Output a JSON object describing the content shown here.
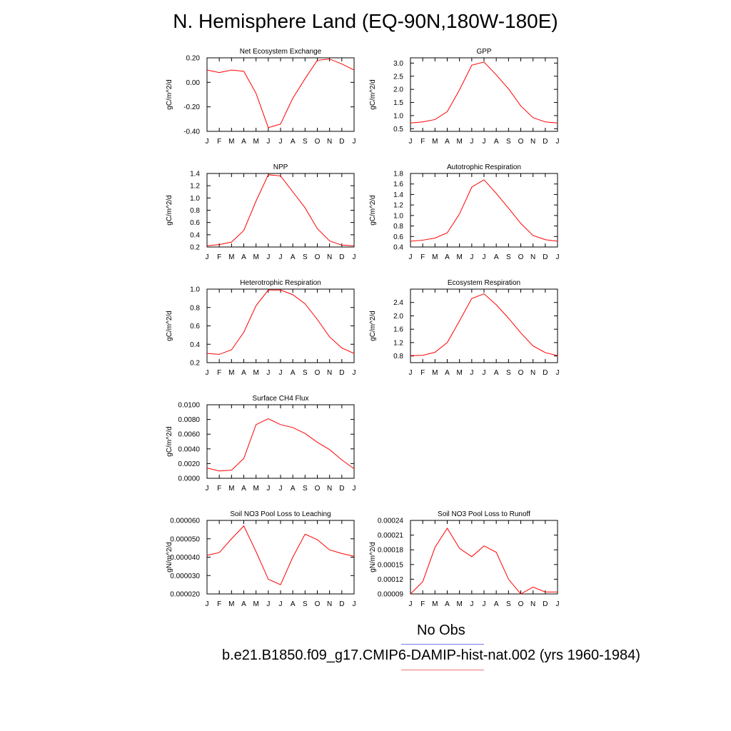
{
  "title": "N. Hemisphere Land (EQ-90N,180W-180E)",
  "months": [
    "J",
    "F",
    "M",
    "A",
    "M",
    "J",
    "J",
    "A",
    "S",
    "O",
    "N",
    "D",
    "J"
  ],
  "legend": {
    "obs_label": "No Obs",
    "case_label": "b.e21.B1850.f09_g17.CMIP6-DAMIP-hist-nat.002 (yrs 1960-1984)",
    "obs_color": "#7777ee",
    "case_color": "#ee7777"
  },
  "series_color": "#ff0000",
  "chart_data": [
    {
      "type": "line",
      "title": "Net Ecosystem Exchange",
      "ylabel": "gC/m^2/d",
      "ylim": [
        -0.4,
        0.2
      ],
      "ytick_values": [
        0.2,
        0.0,
        -0.2,
        -0.4
      ],
      "ytick_labels": [
        "0.20",
        "0.00",
        "-0.20",
        "-0.40"
      ],
      "x": [
        "J",
        "F",
        "M",
        "A",
        "M",
        "J",
        "J",
        "A",
        "S",
        "O",
        "N",
        "D",
        "J"
      ],
      "values": [
        0.1,
        0.08,
        0.1,
        0.09,
        -0.09,
        -0.37,
        -0.34,
        -0.13,
        0.03,
        0.18,
        0.19,
        0.15,
        0.1
      ]
    },
    {
      "type": "line",
      "title": "GPP",
      "ylabel": "gC/m^2/d",
      "ylim": [
        0.4,
        3.2
      ],
      "ytick_values": [
        3.0,
        2.5,
        2.0,
        1.5,
        1.0,
        0.5
      ],
      "ytick_labels": [
        "3.0",
        "2.5",
        "2.0",
        "1.5",
        "1.0",
        "0.5"
      ],
      "x": [
        "J",
        "F",
        "M",
        "A",
        "M",
        "J",
        "J",
        "A",
        "S",
        "O",
        "N",
        "D",
        "J"
      ],
      "values": [
        0.72,
        0.76,
        0.85,
        1.15,
        1.98,
        2.92,
        3.04,
        2.55,
        2.02,
        1.37,
        0.92,
        0.76,
        0.72
      ]
    },
    {
      "type": "line",
      "title": "NPP",
      "ylabel": "gC/m^2/d",
      "ylim": [
        0.2,
        1.4
      ],
      "ytick_values": [
        1.4,
        1.2,
        1.0,
        0.8,
        0.6,
        0.4,
        0.2
      ],
      "ytick_labels": [
        "1.4",
        "1.2",
        "1.0",
        "0.8",
        "0.6",
        "0.4",
        "0.2"
      ],
      "x": [
        "J",
        "F",
        "M",
        "A",
        "M",
        "J",
        "J",
        "A",
        "S",
        "O",
        "N",
        "D",
        "J"
      ],
      "values": [
        0.22,
        0.24,
        0.28,
        0.47,
        0.95,
        1.38,
        1.36,
        1.1,
        0.84,
        0.5,
        0.3,
        0.23,
        0.22
      ]
    },
    {
      "type": "line",
      "title": "Autotrophic Respiration",
      "ylabel": "gC/m^2/d",
      "ylim": [
        0.4,
        1.8
      ],
      "ytick_values": [
        1.8,
        1.6,
        1.4,
        1.2,
        1.0,
        0.8,
        0.6,
        0.4
      ],
      "ytick_labels": [
        "1.8",
        "1.6",
        "1.4",
        "1.2",
        "1.0",
        "0.8",
        "0.6",
        "0.4"
      ],
      "x": [
        "J",
        "F",
        "M",
        "A",
        "M",
        "J",
        "J",
        "A",
        "S",
        "O",
        "N",
        "D",
        "J"
      ],
      "values": [
        0.51,
        0.53,
        0.57,
        0.67,
        1.03,
        1.54,
        1.68,
        1.42,
        1.14,
        0.85,
        0.62,
        0.54,
        0.51
      ]
    },
    {
      "type": "line",
      "title": "Heterotrophic Respiration",
      "ylabel": "gC/m^2/d",
      "ylim": [
        0.2,
        1.0
      ],
      "ytick_values": [
        1.0,
        0.8,
        0.6,
        0.4,
        0.2
      ],
      "ytick_labels": [
        "1.0",
        "0.8",
        "0.6",
        "0.4",
        "0.2"
      ],
      "x": [
        "J",
        "F",
        "M",
        "A",
        "M",
        "J",
        "J",
        "A",
        "S",
        "O",
        "N",
        "D",
        "J"
      ],
      "values": [
        0.3,
        0.29,
        0.34,
        0.53,
        0.82,
        0.99,
        0.99,
        0.94,
        0.84,
        0.67,
        0.48,
        0.36,
        0.3
      ]
    },
    {
      "type": "line",
      "title": "Ecosystem Respiration",
      "ylabel": "gC/m^2/d",
      "ylim": [
        0.6,
        2.8
      ],
      "ytick_values": [
        2.4,
        2.0,
        1.6,
        1.2,
        0.8
      ],
      "ytick_labels": [
        "2.4",
        "2.0",
        "1.6",
        "1.2",
        "0.8"
      ],
      "x": [
        "J",
        "F",
        "M",
        "A",
        "M",
        "J",
        "J",
        "A",
        "S",
        "O",
        "N",
        "D",
        "J"
      ],
      "values": [
        0.81,
        0.82,
        0.91,
        1.2,
        1.85,
        2.52,
        2.66,
        2.33,
        1.93,
        1.49,
        1.1,
        0.9,
        0.81
      ]
    },
    {
      "type": "line",
      "title": "Surface CH4 Flux",
      "ylabel": "gC/m^2/d",
      "ylim": [
        0.0,
        0.01
      ],
      "ytick_values": [
        0.01,
        0.008,
        0.006,
        0.004,
        0.002,
        0.0
      ],
      "ytick_labels": [
        "0.0100",
        "0.0080",
        "0.0060",
        "0.0040",
        "0.0020",
        "0.0000"
      ],
      "x": [
        "J",
        "F",
        "M",
        "A",
        "M",
        "J",
        "J",
        "A",
        "S",
        "O",
        "N",
        "D",
        "J"
      ],
      "values": [
        0.0014,
        0.001,
        0.0011,
        0.0027,
        0.0073,
        0.0081,
        0.0073,
        0.0069,
        0.0061,
        0.0049,
        0.0039,
        0.0025,
        0.0013
      ]
    },
    {
      "type": "line",
      "title": "Soil NO3 Pool Loss to Leaching",
      "ylabel": "gN/m^2/d",
      "ylim": [
        2e-05,
        6e-05
      ],
      "ytick_values": [
        6e-05,
        5e-05,
        4e-05,
        3e-05,
        2e-05
      ],
      "ytick_labels": [
        "0.000060",
        "0.000050",
        "0.000040",
        "0.000030",
        "0.000020"
      ],
      "x": [
        "J",
        "F",
        "M",
        "A",
        "M",
        "J",
        "J",
        "A",
        "S",
        "O",
        "N",
        "D",
        "J"
      ],
      "values": [
        4.1e-05,
        4.25e-05,
        5e-05,
        5.7e-05,
        4.3e-05,
        2.8e-05,
        2.5e-05,
        4e-05,
        5.25e-05,
        4.95e-05,
        4.4e-05,
        4.2e-05,
        4.05e-05
      ]
    },
    {
      "type": "line",
      "title": "Soil NO3 Pool Loss to Runoff",
      "ylabel": "gN/m^2/d",
      "ylim": [
        9e-05,
        0.00024
      ],
      "ytick_values": [
        0.00024,
        0.00021,
        0.00018,
        0.00015,
        0.00012,
        9e-05
      ],
      "ytick_labels": [
        "0.00024",
        "0.00021",
        "0.00018",
        "0.00015",
        "0.00012",
        "0.00009"
      ],
      "x": [
        "J",
        "F",
        "M",
        "A",
        "M",
        "J",
        "J",
        "A",
        "S",
        "O",
        "N",
        "D",
        "J"
      ],
      "values": [
        9e-05,
        0.000115,
        0.000185,
        0.000224,
        0.000183,
        0.000166,
        0.000188,
        0.000175,
        0.00012,
        9e-05,
        0.000104,
        9.4e-05,
        9.4e-05
      ]
    }
  ]
}
